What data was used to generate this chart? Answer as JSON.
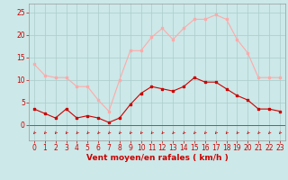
{
  "x": [
    0,
    1,
    2,
    3,
    4,
    5,
    6,
    7,
    8,
    9,
    10,
    11,
    12,
    13,
    14,
    15,
    16,
    17,
    18,
    19,
    20,
    21,
    22,
    23
  ],
  "wind_avg": [
    3.5,
    2.5,
    1.5,
    3.5,
    1.5,
    2.0,
    1.5,
    0.5,
    1.5,
    4.5,
    7.0,
    8.5,
    8.0,
    7.5,
    8.5,
    10.5,
    9.5,
    9.5,
    8.0,
    6.5,
    5.5,
    3.5,
    3.5,
    3.0
  ],
  "wind_gust": [
    13.5,
    11.0,
    10.5,
    10.5,
    8.5,
    8.5,
    5.5,
    3.0,
    10.0,
    16.5,
    16.5,
    19.5,
    21.5,
    19.0,
    21.5,
    23.5,
    23.5,
    24.5,
    23.5,
    19.0,
    16.0,
    10.5,
    10.5,
    10.5
  ],
  "avg_color": "#cc0000",
  "gust_color": "#ffaaaa",
  "bg_color": "#cce8e8",
  "grid_color": "#aacccc",
  "xlabel": "Vent moyen/en rafales ( km/h )",
  "xlim": [
    -0.5,
    23.5
  ],
  "ylim": [
    -3.5,
    27
  ],
  "yticks": [
    0,
    5,
    10,
    15,
    20,
    25
  ],
  "xticks": [
    0,
    1,
    2,
    3,
    4,
    5,
    6,
    7,
    8,
    9,
    10,
    11,
    12,
    13,
    14,
    15,
    16,
    17,
    18,
    19,
    20,
    21,
    22,
    23
  ],
  "label_fontsize": 6.5,
  "tick_fontsize": 5.5,
  "marker_size": 2.0,
  "line_width": 0.8
}
